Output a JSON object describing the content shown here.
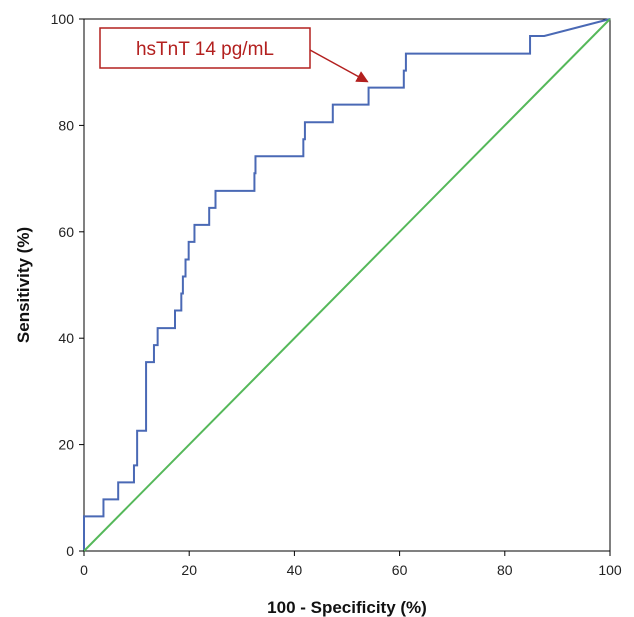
{
  "chart_data": {
    "type": "line",
    "title": "",
    "xlabel": "100 - Specificity (%)",
    "ylabel": "Sensitivity (%)",
    "xlim": [
      0,
      100
    ],
    "ylim": [
      0,
      100
    ],
    "xticks": [
      "0",
      "20",
      "40",
      "60",
      "80",
      "100"
    ],
    "yticks": [
      "0",
      "20",
      "40",
      "60",
      "80",
      "100"
    ],
    "grid": false,
    "legend": "none",
    "series": [
      {
        "color": "#4a69b5",
        "x": [
          0,
          0,
          3.7,
          3.7,
          6.5,
          6.5,
          9.5,
          9.5,
          10.1,
          10.1,
          11.8,
          11.8,
          13.3,
          13.3,
          14.0,
          14.0,
          17.3,
          17.3,
          18.5,
          18.5,
          18.8,
          18.8,
          19.3,
          19.3,
          19.9,
          19.9,
          21.0,
          21.0,
          23.8,
          23.8,
          25.0,
          25.0,
          32.4,
          32.4,
          32.6,
          32.6,
          41.7,
          41.7,
          42.0,
          42.0,
          47.3,
          47.3,
          54.1,
          54.1,
          60.8,
          60.8,
          61.2,
          61.2,
          84.8,
          84.8,
          87.5,
          100
        ],
        "y": [
          0,
          6.5,
          6.5,
          9.7,
          9.7,
          12.9,
          12.9,
          16.1,
          16.1,
          22.6,
          22.6,
          35.5,
          35.5,
          38.7,
          38.7,
          41.9,
          41.9,
          45.2,
          45.2,
          48.4,
          48.4,
          51.6,
          51.6,
          54.8,
          54.8,
          58.1,
          58.1,
          61.3,
          61.3,
          64.5,
          64.5,
          67.7,
          67.7,
          71.0,
          71.0,
          74.2,
          74.2,
          77.4,
          77.4,
          80.6,
          80.6,
          83.9,
          83.9,
          87.1,
          87.1,
          90.3,
          90.3,
          93.5,
          93.5,
          96.8,
          96.8,
          100
        ]
      },
      {
        "color": "#55b85a",
        "x": [
          0,
          100
        ],
        "y": [
          0,
          100
        ]
      }
    ],
    "annotations": [
      {
        "text": "hsTnT 14 pg/mL",
        "x": 54.1,
        "y": 87.1,
        "color": "#b3201f"
      }
    ]
  }
}
